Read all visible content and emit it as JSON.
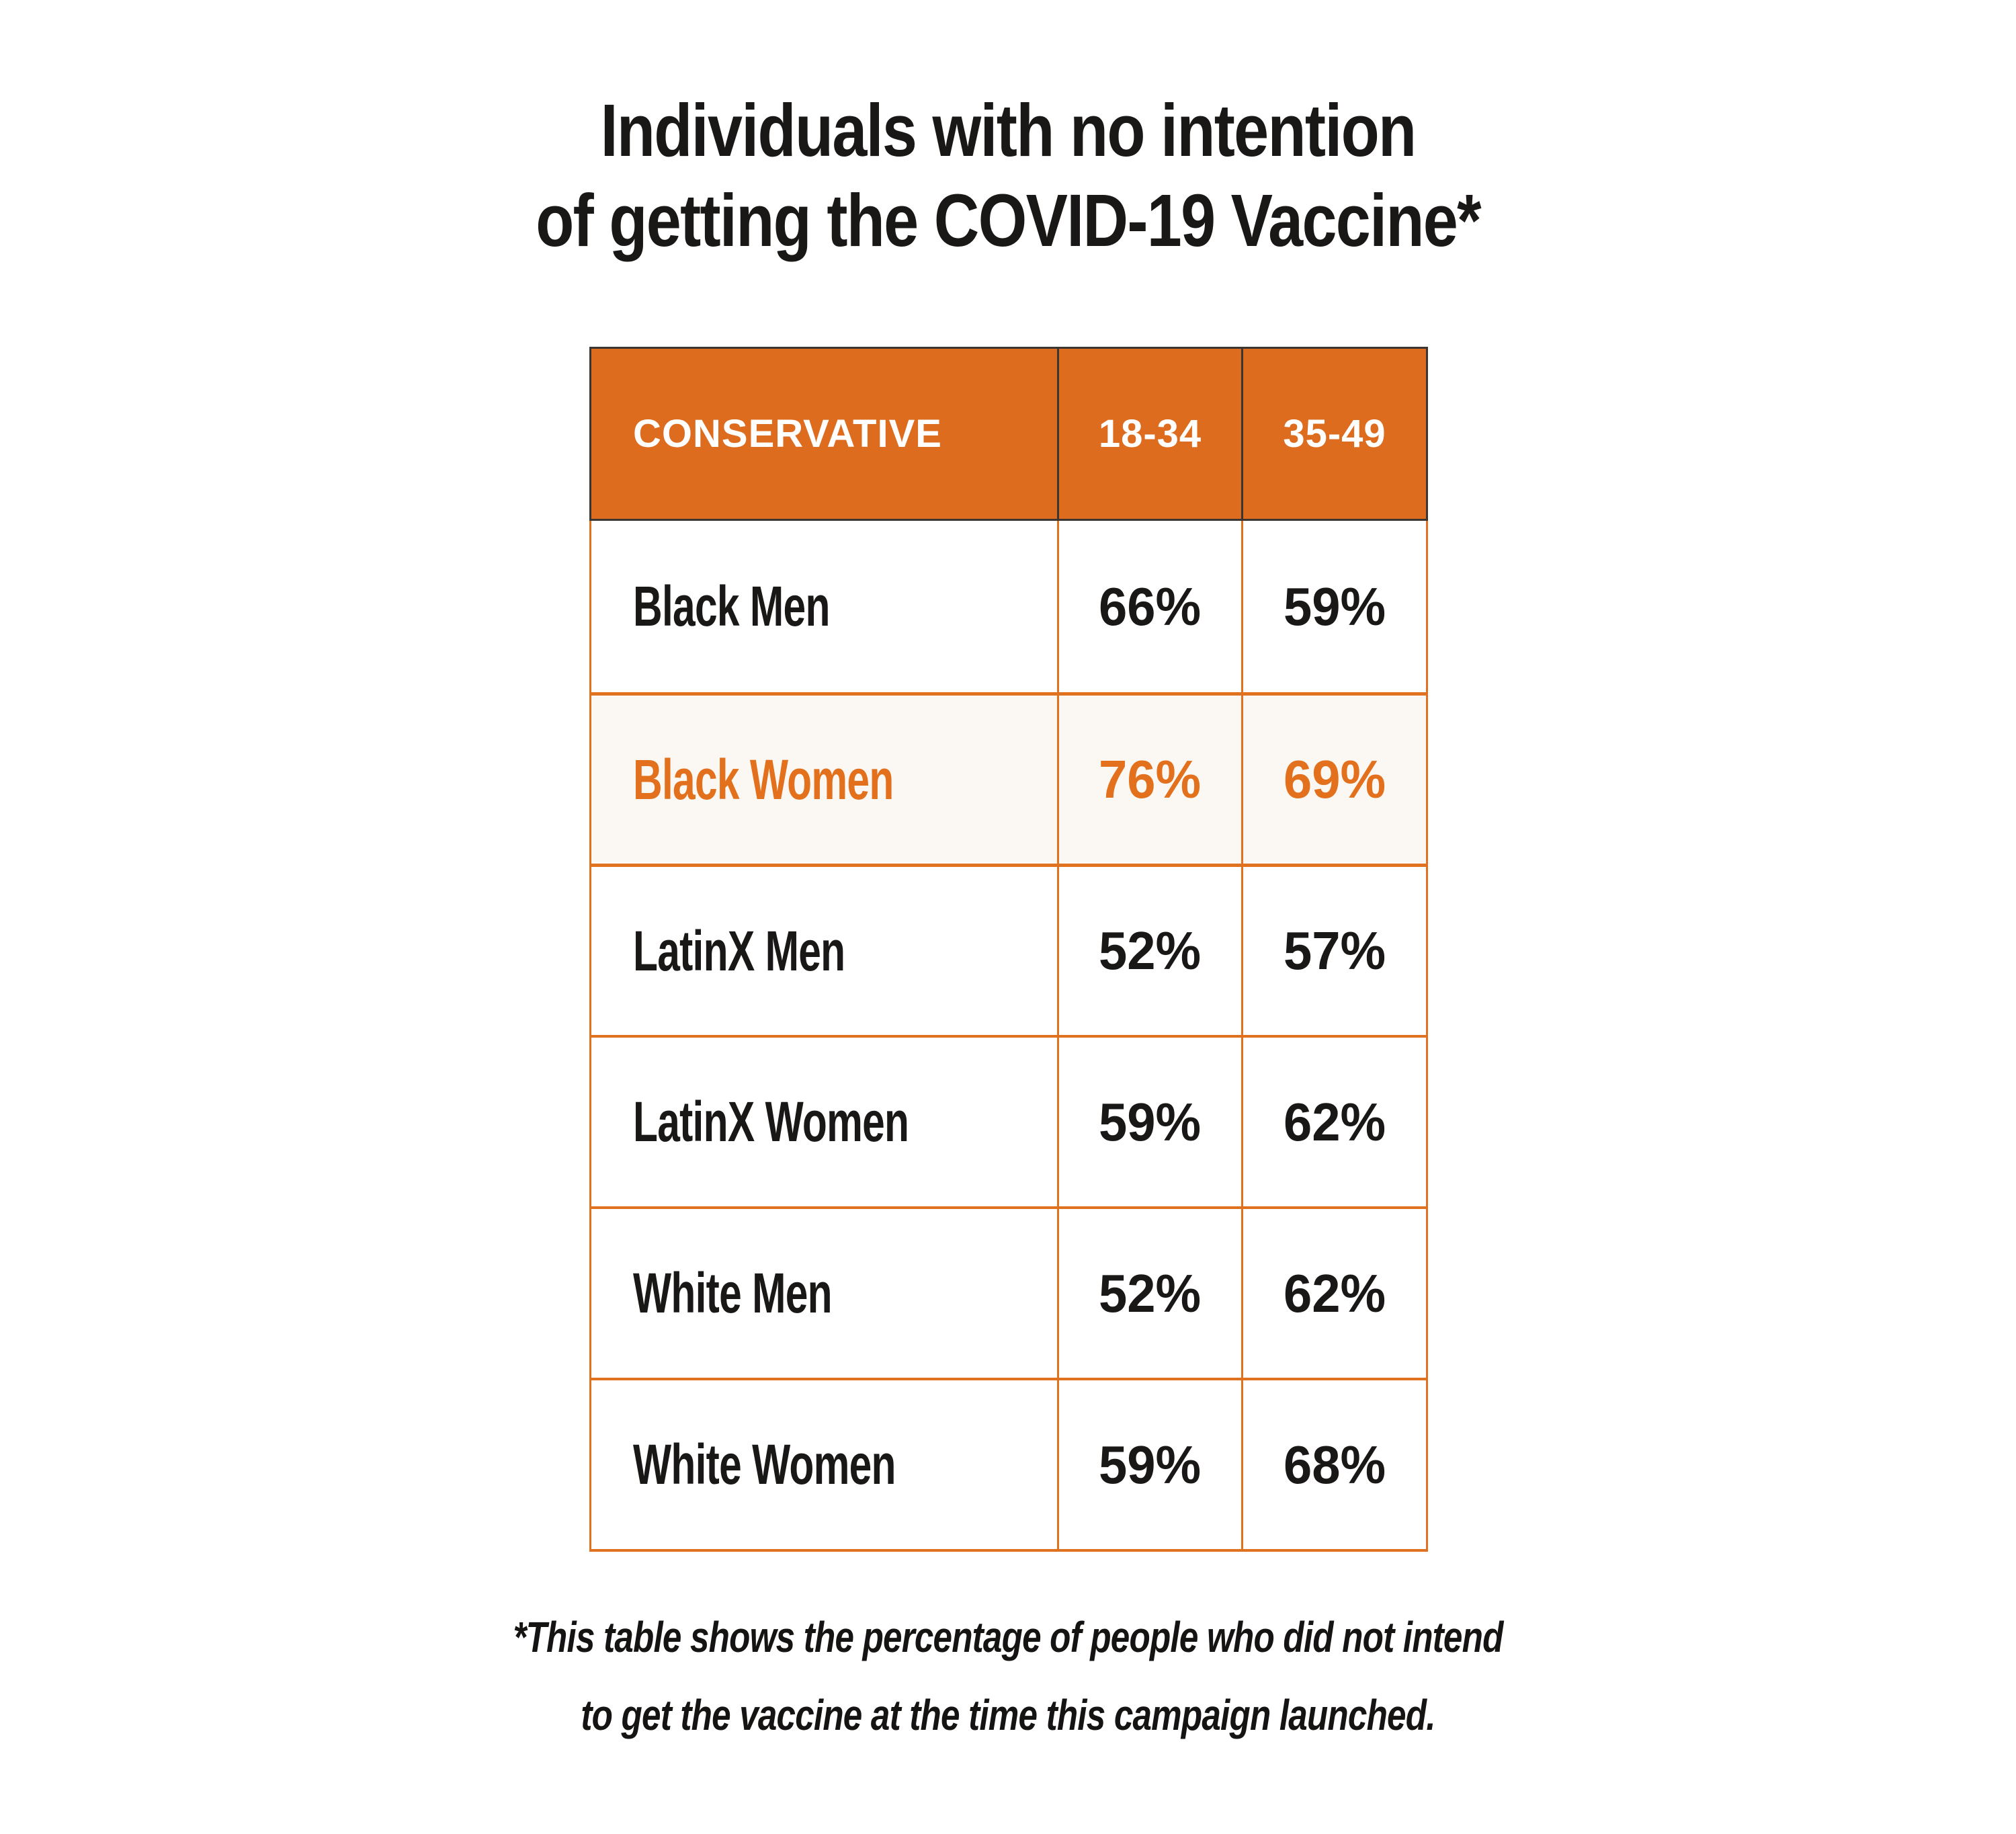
{
  "title": {
    "line1": "Individuals with no intention",
    "line2": "of getting the COVID-19 Vaccine*"
  },
  "table": {
    "header": [
      "CONSERVATIVE",
      "18-34",
      "35-49"
    ],
    "rows": [
      {
        "label": "Black Men",
        "values": [
          "66%",
          "59%"
        ],
        "highlighted": false
      },
      {
        "label": "Black Women",
        "values": [
          "76%",
          "69%"
        ],
        "highlighted": true
      },
      {
        "label": "LatinX Men",
        "values": [
          "52%",
          "57%"
        ],
        "highlighted": false
      },
      {
        "label": "LatinX Women",
        "values": [
          "59%",
          "62%"
        ],
        "highlighted": false
      },
      {
        "label": "White Men",
        "values": [
          "52%",
          "62%"
        ],
        "highlighted": false
      },
      {
        "label": "White Women",
        "values": [
          "59%",
          "68%"
        ],
        "highlighted": false
      }
    ]
  },
  "footnote": {
    "line1": "*This table shows the percentage of people who did not intend",
    "line2": "to get the vaccine at the time this campaign launched."
  },
  "colors": {
    "header_bg": "#de6c1f",
    "header_outline": "#3c3632",
    "header_text": "#ffffff",
    "border_orange": "#e0711f",
    "highlight_bg": "#fbf8f4",
    "highlight_text": "#e2701c",
    "body_text": "#1a1717",
    "page_bg": "#ffffff"
  },
  "chart_data": {
    "type": "table",
    "title": "Individuals with no intention of getting the COVID-19 Vaccine*",
    "columns": [
      "CONSERVATIVE",
      "18-34",
      "35-49"
    ],
    "rows": [
      [
        "Black Men",
        66,
        59
      ],
      [
        "Black Women",
        76,
        69
      ],
      [
        "LatinX Men",
        52,
        57
      ],
      [
        "LatinX Women",
        59,
        62
      ],
      [
        "White Men",
        52,
        62
      ],
      [
        "White Women",
        59,
        68
      ]
    ],
    "units": "percent",
    "highlighted_row": "Black Women",
    "footnote": "*This table shows the percentage of people who did not intend to get the vaccine at the time this campaign launched."
  }
}
